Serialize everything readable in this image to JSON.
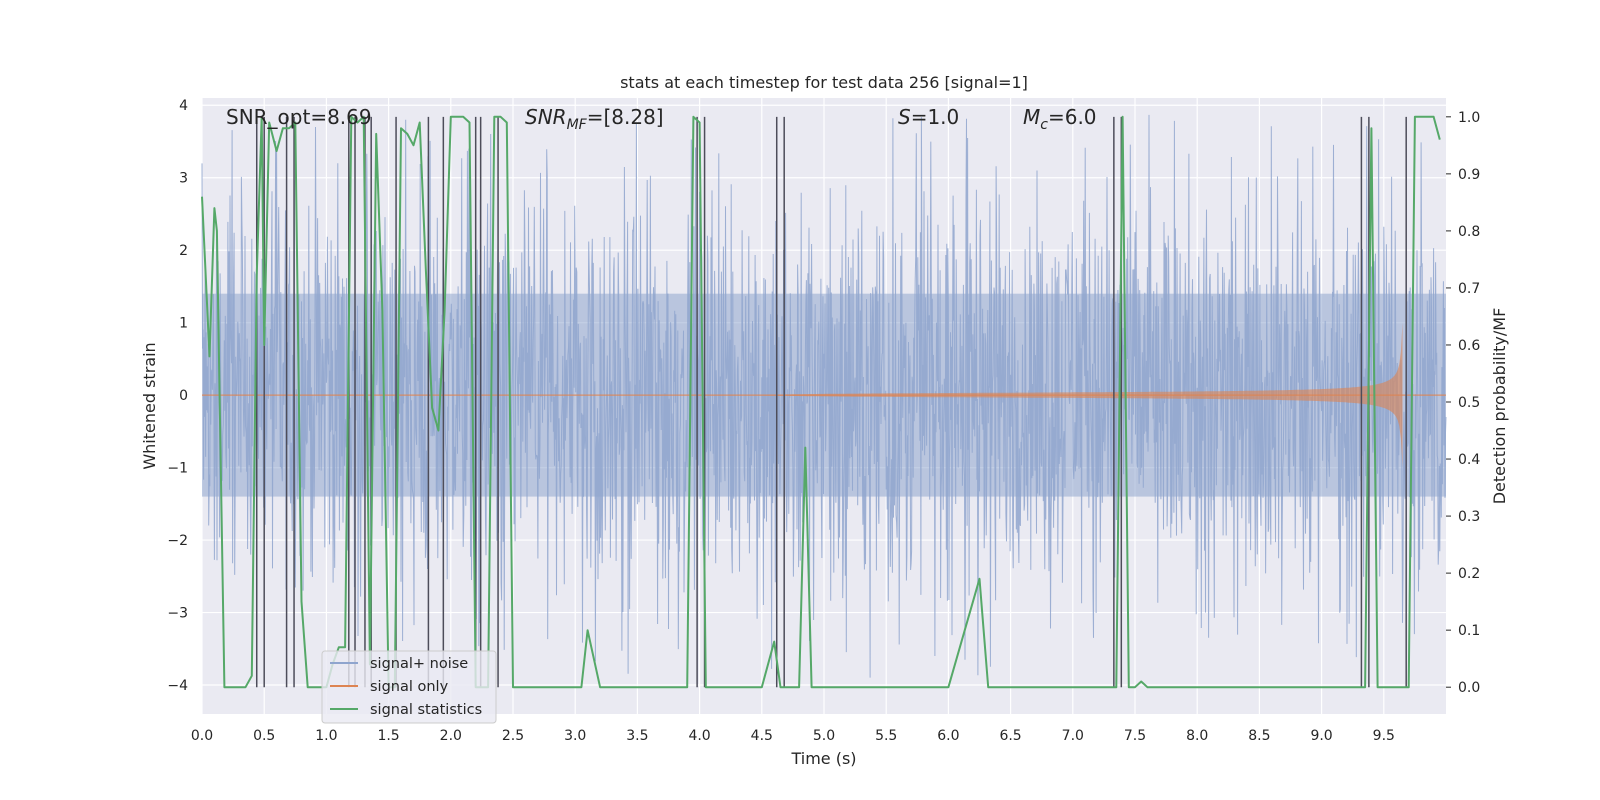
{
  "chart_data": {
    "type": "line",
    "title": "stats at each timestep for test data 256 [signal=1]",
    "xlabel": "Time (s)",
    "ylabel": "Whitened strain",
    "y2label": "Detection probability/MF",
    "xlim": [
      0.0,
      10.0
    ],
    "ylim": [
      -4.4,
      4.1
    ],
    "y2lim": [
      -0.047,
      1.033
    ],
    "x_ticks": [
      "0.0",
      "0.5",
      "1.0",
      "1.5",
      "2.0",
      "2.5",
      "3.0",
      "3.5",
      "4.0",
      "4.5",
      "5.0",
      "5.5",
      "6.0",
      "6.5",
      "7.0",
      "7.5",
      "8.0",
      "8.5",
      "9.0",
      "9.5"
    ],
    "y_ticks": [
      "4",
      "3",
      "2",
      "1",
      "0",
      "−1",
      "−2",
      "−3",
      "−4"
    ],
    "y2_ticks": [
      "1.0",
      "0.9",
      "0.8",
      "0.7",
      "0.6",
      "0.5",
      "0.4",
      "0.3",
      "0.2",
      "0.1",
      "0.0"
    ],
    "grid": true,
    "legend_position": "lower-left",
    "annotations": {
      "snr_opt": "SNR_opt=8.69",
      "snr_mf_sym": "SNR",
      "snr_mf_sub": "MF",
      "snr_mf_val": "=[8.28]",
      "s_sym": "S",
      "s_val": "=1.0",
      "mc_sym": "M",
      "mc_sub": "c",
      "mc_val": "=6.0"
    },
    "series": [
      {
        "name": "signal+ noise",
        "color": "#8fa5ce",
        "kind": "noise",
        "envelope_abs": 1.75,
        "peak_abs": 3.9
      },
      {
        "name": "signal only",
        "color": "#dd8452",
        "kind": "chirp",
        "amplitude_start": 0.0,
        "amplitude_end": 1.0,
        "merger_time": 9.65
      },
      {
        "name": "signal statistics",
        "color": "#55a868",
        "axis": "right",
        "x": [
          0.0,
          0.06,
          0.1,
          0.12,
          0.18,
          0.25,
          0.35,
          0.4,
          0.44,
          0.48,
          0.5,
          0.54,
          0.6,
          0.65,
          0.7,
          0.75,
          0.8,
          0.85,
          0.9,
          0.95,
          1.0,
          1.05,
          1.1,
          1.15,
          1.2,
          1.25,
          1.3,
          1.35,
          1.4,
          1.45,
          1.5,
          1.55,
          1.6,
          1.65,
          1.7,
          1.75,
          1.8,
          1.85,
          1.9,
          1.95,
          2.0,
          2.05,
          2.1,
          2.15,
          2.2,
          2.25,
          2.3,
          2.35,
          2.4,
          2.45,
          2.5,
          2.6,
          2.7,
          2.8,
          2.9,
          3.0,
          3.05,
          3.1,
          3.2,
          3.3,
          3.4,
          3.5,
          3.6,
          3.7,
          3.8,
          3.9,
          3.95,
          4.0,
          4.05,
          4.1,
          4.2,
          4.3,
          4.4,
          4.5,
          4.6,
          4.65,
          4.7,
          4.75,
          4.8,
          4.85,
          4.9,
          4.95,
          5.0,
          5.5,
          6.0,
          6.25,
          6.32,
          6.4,
          6.5,
          7.0,
          7.3,
          7.35,
          7.4,
          7.45,
          7.5,
          7.55,
          7.6,
          7.65,
          7.7,
          8.0,
          8.5,
          9.0,
          9.3,
          9.35,
          9.4,
          9.45,
          9.5,
          9.6,
          9.7,
          9.75,
          9.8,
          9.9,
          9.95
        ],
        "y": [
          0.86,
          0.58,
          0.84,
          0.8,
          0.0,
          0.0,
          0.0,
          0.02,
          0.72,
          1.0,
          0.6,
          0.99,
          0.94,
          0.98,
          0.98,
          0.99,
          0.15,
          0.0,
          0.0,
          0.0,
          0.0,
          0.04,
          0.07,
          0.07,
          1.0,
          0.99,
          1.0,
          0.04,
          0.97,
          0.66,
          0.0,
          0.0,
          0.98,
          0.97,
          0.95,
          0.99,
          0.73,
          0.49,
          0.45,
          0.66,
          1.0,
          1.0,
          1.0,
          0.99,
          0.0,
          0.0,
          0.0,
          1.0,
          1.0,
          0.99,
          0.0,
          0.0,
          0.0,
          0.0,
          0.0,
          0.0,
          0.0,
          0.1,
          0.0,
          0.0,
          0.0,
          0.0,
          0.0,
          0.0,
          0.0,
          0.0,
          1.0,
          0.99,
          0.0,
          0.0,
          0.0,
          0.0,
          0.0,
          0.0,
          0.08,
          0.0,
          0.0,
          0.0,
          0.0,
          0.42,
          0.0,
          0.0,
          0.0,
          0.0,
          0.0,
          0.19,
          0.0,
          0.0,
          0.0,
          0.0,
          0.0,
          0.0,
          1.0,
          0.0,
          0.0,
          0.01,
          0.0,
          0.0,
          0.0,
          0.0,
          0.0,
          0.0,
          0.0,
          0.0,
          0.98,
          0.0,
          0.0,
          0.0,
          0.0,
          1.0,
          1.0,
          1.0,
          0.96
        ]
      }
    ],
    "trigger_times": [
      0.44,
      0.5,
      0.68,
      0.74,
      1.18,
      1.23,
      1.31,
      1.36,
      1.56,
      1.82,
      1.94,
      2.2,
      2.24,
      2.38,
      3.98,
      4.04,
      4.62,
      4.68,
      7.33,
      7.39,
      9.32,
      9.38,
      9.68
    ]
  }
}
